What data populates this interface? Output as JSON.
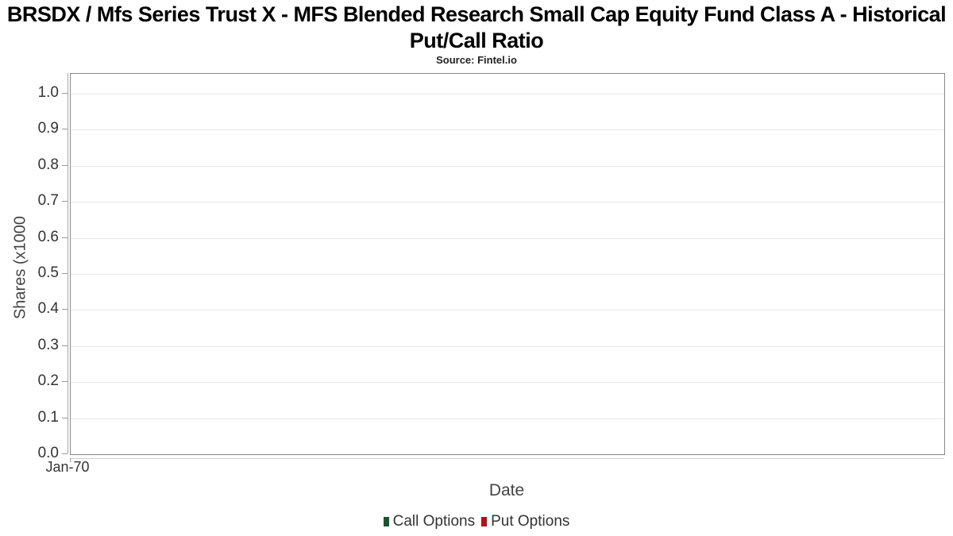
{
  "header": {
    "title": "BRSDX / Mfs Series Trust X - MFS Blended Research Small Cap Equity Fund Class A - Historical Put/Call Ratio",
    "subtitle": "Source: Fintel.io"
  },
  "chart_data": {
    "type": "bar",
    "title": "BRSDX / Mfs Series Trust X - MFS Blended Research Small Cap Equity Fund Class A - Historical Put/Call Ratio",
    "subtitle": "Source: Fintel.io",
    "xlabel": "Date",
    "ylabel": "Shares (x1000",
    "x_tick_labels": [
      "Jan-70"
    ],
    "y_tick_labels": [
      "1.0",
      "0.9",
      "0.8",
      "0.7",
      "0.6",
      "0.5",
      "0.4",
      "0.3",
      "0.2",
      "0.1",
      "0.0"
    ],
    "ylim": [
      0,
      1.055
    ],
    "grid": true,
    "legend_position": "bottom",
    "categories": [],
    "series": [
      {
        "name": "Call Options",
        "color": "#1d5331",
        "values": []
      },
      {
        "name": "Put Options",
        "color": "#b21217",
        "values": []
      }
    ]
  }
}
